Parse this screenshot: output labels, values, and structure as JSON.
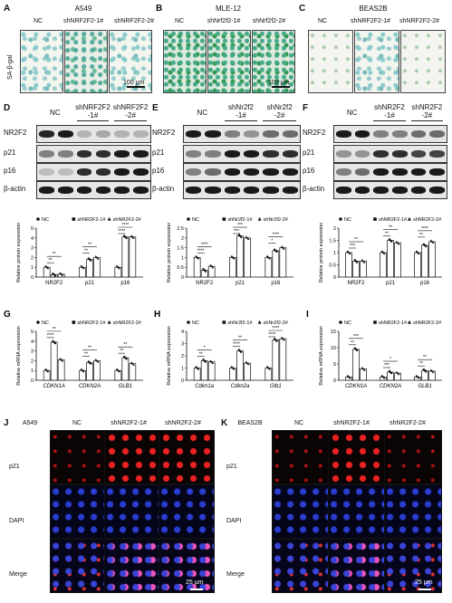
{
  "panels": {
    "A": {
      "letter": "A",
      "cell": "A549",
      "cols": [
        "NC",
        "shNRF2F2-1#",
        "shNRF2F2-2#"
      ],
      "ylabel": "SA-β-gal",
      "scale": "100 µm"
    },
    "B": {
      "letter": "B",
      "cell": "MLE-12",
      "cols": [
        "NC",
        "shNrf2f2-1#",
        "shNrf2f2-2#"
      ],
      "scale": "100 µm"
    },
    "C": {
      "letter": "C",
      "cell": "BEAS2B",
      "cols": [
        "NC",
        "shNRF2F2-1#",
        "shNRF2F2-2#"
      ]
    },
    "D": {
      "letter": "D",
      "h_nc": "NC",
      "h1": "shNRF2F2",
      "h1b": "-1#",
      "h2": "shNRF2F2",
      "h2b": "-2#",
      "rows": [
        "NR2F2",
        "p21",
        "p16",
        "β-actin"
      ]
    },
    "E": {
      "letter": "E",
      "h_nc": "NC",
      "h1": "shNr2f2",
      "h1b": "-1#",
      "h2": "shNr2f2",
      "h2b": "-2#",
      "rows": [
        "NR2F2",
        "p21",
        "p16",
        "β-actin"
      ]
    },
    "F": {
      "letter": "F",
      "h_nc": "NC",
      "h1": "shNR2F2",
      "h1b": "-1#",
      "h2": "shNR2F2",
      "h2b": "-2#",
      "rows": [
        "NR2F2",
        "p21",
        "p16",
        "β-actin"
      ]
    },
    "G": {
      "letter": "G"
    },
    "H": {
      "letter": "H"
    },
    "I": {
      "letter": "I"
    },
    "J": {
      "letter": "J",
      "cell": "A549",
      "cols": [
        "NC",
        "shNR2F2-1#",
        "shNR2F2-2#"
      ],
      "rows": [
        "p21",
        "DAPI",
        "Merge"
      ],
      "scale": "25 µm"
    },
    "K": {
      "letter": "K",
      "cell": "BEAS2B",
      "cols": [
        "NC",
        "shNR2F2-1#",
        "shNR2F2-2#"
      ],
      "rows": [
        "p21",
        "DAPI",
        "Merge"
      ],
      "scale": "25 µm"
    }
  },
  "chart_data": [
    {
      "panel": "D",
      "type": "bar",
      "ylabel": "Relative protein expression",
      "categories": [
        "NR2F2",
        "p21",
        "p16"
      ],
      "ylim": [
        0,
        5
      ],
      "yticks": [
        0,
        1,
        2,
        3,
        4,
        5
      ],
      "legend": [
        "NC",
        "shNR2F2-1#",
        "shNR2F2-2#"
      ],
      "series": [
        {
          "name": "NC",
          "values": [
            1.0,
            1.0,
            1.0
          ]
        },
        {
          "name": "shNR2F2-1#",
          "values": [
            0.25,
            1.8,
            4.1
          ]
        },
        {
          "name": "shNR2F2-2#",
          "values": [
            0.3,
            2.0,
            4.1
          ]
        }
      ],
      "significance": [
        "**",
        "**",
        "**",
        "**",
        "****",
        "****"
      ]
    },
    {
      "panel": "E",
      "type": "bar",
      "ylabel": "Relative protein expression",
      "categories": [
        "NR2F2",
        "p21",
        "p16"
      ],
      "ylim": [
        0,
        2.5
      ],
      "yticks": [
        0.0,
        0.5,
        1.0,
        1.5,
        2.0,
        2.5
      ],
      "legend": [
        "NC",
        "shNr2f2-1#",
        "shNr2f2-2#"
      ],
      "series": [
        {
          "name": "NC",
          "values": [
            1.0,
            1.0,
            1.0
          ]
        },
        {
          "name": "shNr2f2-1#",
          "values": [
            0.35,
            2.1,
            1.35
          ]
        },
        {
          "name": "shNr2f2-2#",
          "values": [
            0.55,
            2.0,
            1.5
          ]
        }
      ],
      "significance": [
        "****",
        "****",
        "***",
        "***",
        "*",
        "****"
      ]
    },
    {
      "panel": "F",
      "type": "bar",
      "ylabel": "Relative protein expression",
      "categories": [
        "NR2F2",
        "p21",
        "p16"
      ],
      "ylim": [
        0,
        2.0
      ],
      "yticks": [
        0.0,
        0.5,
        1.0,
        1.5,
        2.0
      ],
      "legend": [
        "NC",
        "shNR2F2-1#",
        "shNR2F2-2#"
      ],
      "series": [
        {
          "name": "NC",
          "values": [
            1.0,
            1.0,
            1.0
          ]
        },
        {
          "name": "shNR2F2-1#",
          "values": [
            0.65,
            1.5,
            1.3
          ]
        },
        {
          "name": "shNR2F2-2#",
          "values": [
            0.65,
            1.4,
            1.45
          ]
        }
      ],
      "significance": [
        "***",
        "**",
        "**",
        "**",
        "**",
        "****"
      ]
    },
    {
      "panel": "G",
      "type": "bar",
      "ylabel": "Relative mRNA expression",
      "categories": [
        "CDKN1A",
        "CDKN2A",
        "GLB1"
      ],
      "ylim": [
        0,
        5
      ],
      "yticks": [
        0,
        1,
        2,
        3,
        4,
        5
      ],
      "legend": [
        "NC",
        "shNR2F2-1#",
        "shNR2F2-2#"
      ],
      "series": [
        {
          "name": "NC",
          "values": [
            1.0,
            1.0,
            1.0
          ]
        },
        {
          "name": "shNR2F2-1#",
          "values": [
            3.9,
            1.8,
            2.3
          ]
        },
        {
          "name": "shNR2F2-2#",
          "values": [
            2.1,
            2.0,
            1.7
          ]
        }
      ],
      "significance": [
        "****",
        "**",
        "**",
        "**",
        "**",
        "**"
      ]
    },
    {
      "panel": "H",
      "type": "bar",
      "ylabel": "Relative mRNA expression",
      "categories": [
        "Cdkn1a",
        "Cdkn2a",
        "Glb1"
      ],
      "ylim": [
        0,
        4
      ],
      "yticks": [
        0,
        1,
        2,
        3,
        4
      ],
      "legend": [
        "NC",
        "shNr2f2-1#",
        "shNr2f2-2#"
      ],
      "series": [
        {
          "name": "NC",
          "values": [
            1.0,
            1.0,
            1.0
          ]
        },
        {
          "name": "shNr2f2-1#",
          "values": [
            1.6,
            2.4,
            3.3
          ]
        },
        {
          "name": "shNr2f2-2#",
          "values": [
            1.5,
            1.4,
            3.4
          ]
        }
      ],
      "significance": [
        "**",
        "*",
        "****",
        "**",
        "****",
        "****"
      ]
    },
    {
      "panel": "I",
      "type": "bar",
      "ylabel": "Relative mRNA expression",
      "categories": [
        "CDKN1A",
        "CDKN2A",
        "GLB1"
      ],
      "ylim": [
        0,
        15
      ],
      "yticks": [
        0,
        5,
        10,
        15
      ],
      "legend": [
        "NC",
        "shNR2F2-1#",
        "shNR2F2-2#"
      ],
      "series": [
        {
          "name": "NC",
          "values": [
            1.0,
            1.0,
            1.0
          ]
        },
        {
          "name": "shNR2F2-1#",
          "values": [
            9.5,
            2.5,
            3.0
          ]
        },
        {
          "name": "shNR2F2-2#",
          "values": [
            3.5,
            2.2,
            2.8
          ]
        }
      ],
      "significance": [
        "**",
        "***",
        "***",
        "*",
        "**",
        "**"
      ]
    }
  ]
}
